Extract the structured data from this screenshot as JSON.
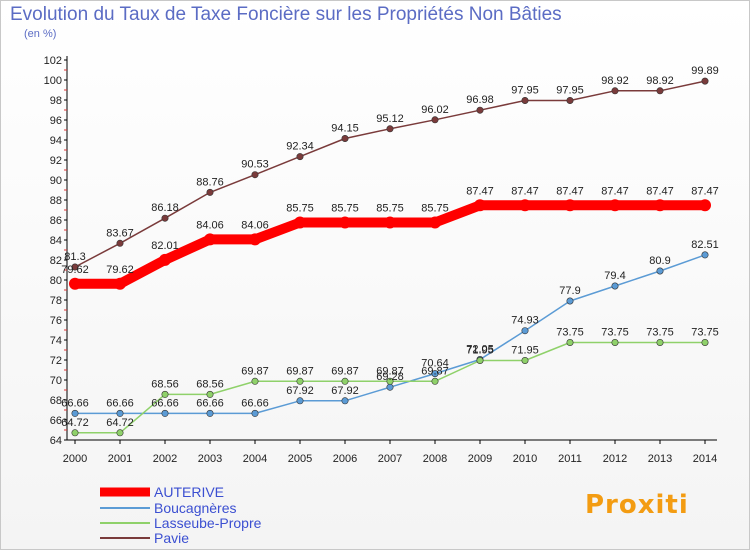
{
  "header": {
    "title": "Evolution du Taux de Taxe Foncière sur les Propriétés Non Bâties",
    "subtitle": "(en %)"
  },
  "logo": {
    "text": "Proxiti"
  },
  "chart_data": {
    "type": "line",
    "title": "Evolution du Taux de Taxe Foncière sur les Propriétés Non Bâties",
    "ylabel": "(en %)",
    "xlabel": "",
    "x": [
      2000,
      2001,
      2002,
      2003,
      2004,
      2005,
      2006,
      2007,
      2008,
      2009,
      2010,
      2011,
      2012,
      2013,
      2014
    ],
    "ylim": [
      64,
      102
    ],
    "yticks": [
      64,
      66,
      68,
      70,
      72,
      74,
      76,
      78,
      80,
      82,
      84,
      86,
      88,
      90,
      92,
      94,
      96,
      98,
      100,
      102
    ],
    "grid": false,
    "legend_position": "bottom-left",
    "series": [
      {
        "name": "AUTERIVE",
        "color": "#ff0000",
        "thick": true,
        "values": [
          79.62,
          79.62,
          82.01,
          84.06,
          84.06,
          85.75,
          85.75,
          85.75,
          85.75,
          87.47,
          87.47,
          87.47,
          87.47,
          87.47,
          87.47
        ],
        "labels": [
          "79.62",
          "79.62",
          "82.01",
          "84.06",
          "84.06",
          "85.75",
          "85.75",
          "85.75",
          "85.75",
          "87.47",
          "87.47",
          "87.47",
          "87.47",
          "87.47",
          "87.47"
        ]
      },
      {
        "name": "Boucagnères",
        "color": "#5b9bd5",
        "thick": false,
        "values": [
          66.66,
          66.66,
          66.66,
          66.66,
          66.66,
          67.92,
          67.92,
          69.28,
          70.64,
          72.05,
          74.93,
          77.9,
          79.4,
          80.9,
          82.51
        ],
        "labels": [
          "66.66",
          "66.66",
          "66.66",
          "66.66",
          "66.66",
          "67.92",
          "67.92",
          "69.28",
          "70.64",
          "72.05",
          "74.93",
          "77.9",
          "79.4",
          "80.9",
          "82.51"
        ]
      },
      {
        "name": "Lasseube-Propre",
        "color": "#8fd16a",
        "thick": false,
        "values": [
          64.72,
          64.72,
          68.56,
          68.56,
          69.87,
          69.87,
          69.87,
          69.87,
          69.87,
          71.95,
          71.95,
          73.75,
          73.75,
          73.75,
          73.75
        ],
        "labels": [
          "64.72",
          "64.72",
          "68.56",
          "68.56",
          "69.87",
          "69.87",
          "69.87",
          "69.87",
          "69.87",
          "71.95",
          "71.95",
          "73.75",
          "73.75",
          "73.75",
          "73.75"
        ]
      },
      {
        "name": "Pavie",
        "color": "#7a3b3b",
        "thick": false,
        "values": [
          81.3,
          83.67,
          86.18,
          88.76,
          90.53,
          92.34,
          94.15,
          95.12,
          96.02,
          96.98,
          97.95,
          97.95,
          98.92,
          98.92,
          99.89
        ],
        "labels": [
          "81.3",
          "83.67",
          "86.18",
          "88.76",
          "90.53",
          "92.34",
          "94.15",
          "95.12",
          "96.02",
          "96.98",
          "97.95",
          "97.95",
          "98.92",
          "98.92",
          "99.89"
        ]
      }
    ]
  }
}
